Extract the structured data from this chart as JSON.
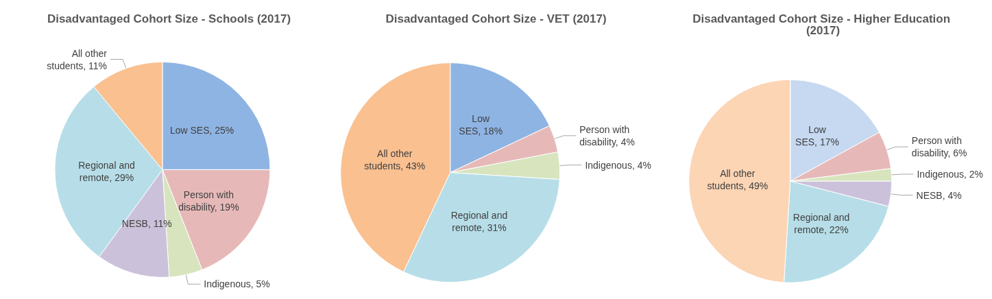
{
  "chart_data": [
    {
      "type": "pie",
      "title": "Disadvantaged Cohort Size - Schools (2017)",
      "categories": [
        "Low SES",
        "Person with disability",
        "Indigenous",
        "NESB",
        "Regional and remote",
        "All other students"
      ],
      "values": [
        25,
        19,
        5,
        11,
        29,
        11
      ],
      "value_labels": [
        "25%",
        "19%",
        "5%",
        "11%",
        "29%",
        "11%"
      ],
      "colors": [
        "#8eb4e3",
        "#e6b9b8",
        "#d7e4bd",
        "#ccc1da",
        "#b7dee8",
        "#fac090"
      ]
    },
    {
      "type": "pie",
      "title": "Disadvantaged Cohort Size - VET (2017)",
      "categories": [
        "Low SES",
        "Person with disability",
        "Indigenous",
        "Regional and remote",
        "All other students"
      ],
      "values": [
        18,
        4,
        4,
        31,
        43
      ],
      "value_labels": [
        "18%",
        "4%",
        "4%",
        "31%",
        "43%"
      ],
      "colors": [
        "#8eb4e3",
        "#e6b9b8",
        "#d7e4bd",
        "#b7dee8",
        "#fac090"
      ]
    },
    {
      "type": "pie",
      "title": "Disadvantaged Cohort Size - Higher Education (2017)",
      "categories": [
        "Low SES",
        "Person with disability",
        "Indigenous",
        "NESB",
        "Regional and remote",
        "All other students"
      ],
      "values": [
        17,
        6,
        2,
        4,
        22,
        49
      ],
      "value_labels": [
        "17%",
        "6%",
        "2%",
        "4%",
        "22%",
        "49%"
      ],
      "colors": [
        "#c6d9f1",
        "#e6b9b8",
        "#d7e4bd",
        "#ccc1da",
        "#b7dee8",
        "#fcd5b5"
      ]
    }
  ]
}
